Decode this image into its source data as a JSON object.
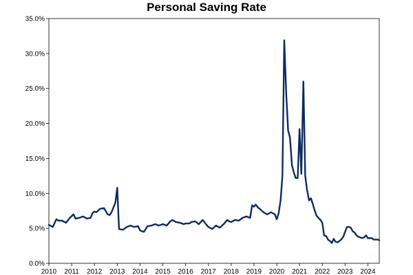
{
  "chart_data": {
    "type": "line",
    "title": "Personal Saving Rate",
    "xlabel": "",
    "ylabel": "",
    "x_ticks": [
      "2010",
      "2011",
      "2012",
      "2013",
      "2014",
      "2015",
      "2016",
      "2017",
      "2018",
      "2019",
      "2020",
      "2021",
      "2022",
      "2023",
      "2024"
    ],
    "y_ticks": [
      "0.0%",
      "5.0%",
      "10.0%",
      "15.0%",
      "20.0%",
      "25.0%",
      "30.0%",
      "35.0%"
    ],
    "xlim": [
      2010.0,
      2024.5
    ],
    "ylim": [
      0,
      35
    ],
    "grid": false,
    "legend": "none",
    "colors": {
      "line": "#0d2b5e",
      "axis": "#000000",
      "border": "#000000"
    },
    "series": [
      {
        "x": [
          2010.0,
          2010.17,
          2010.33,
          2010.42,
          2010.58,
          2010.75,
          2010.92,
          2011.08,
          2011.17,
          2011.33,
          2011.5,
          2011.67,
          2011.83,
          2011.92,
          2012.0,
          2012.08,
          2012.25,
          2012.42,
          2012.58,
          2012.67,
          2012.75,
          2012.92,
          2013.0,
          2013.08,
          2013.25,
          2013.42,
          2013.58,
          2013.75,
          2013.92,
          2014.0,
          2014.17,
          2014.33,
          2014.5,
          2014.67,
          2014.83,
          2015.0,
          2015.17,
          2015.33,
          2015.42,
          2015.58,
          2015.75,
          2015.92,
          2016.0,
          2016.17,
          2016.25,
          2016.42,
          2016.58,
          2016.75,
          2016.92,
          2017.0,
          2017.17,
          2017.33,
          2017.5,
          2017.67,
          2017.83,
          2017.92,
          2018.0,
          2018.17,
          2018.33,
          2018.5,
          2018.67,
          2018.83,
          2018.92,
          2019.0,
          2019.08,
          2019.17,
          2019.25,
          2019.42,
          2019.58,
          2019.75,
          2019.92,
          2020.0,
          2020.08,
          2020.17,
          2020.25,
          2020.33,
          2020.42,
          2020.5,
          2020.58,
          2020.67,
          2020.75,
          2020.83,
          2020.92,
          2021.0,
          2021.08,
          2021.17,
          2021.25,
          2021.33,
          2021.42,
          2021.5,
          2021.58,
          2021.67,
          2021.75,
          2021.83,
          2021.92,
          2022.0,
          2022.08,
          2022.17,
          2022.25,
          2022.33,
          2022.42,
          2022.5,
          2022.58,
          2022.67,
          2022.75,
          2022.83,
          2022.92,
          2023.0,
          2023.08,
          2023.17,
          2023.25,
          2023.33,
          2023.42,
          2023.5,
          2023.58,
          2023.67,
          2023.75,
          2023.83,
          2023.92,
          2024.0,
          2024.08,
          2024.17,
          2024.25,
          2024.33,
          2024.42,
          2024.5
        ],
        "values": [
          5.5,
          5.2,
          6.3,
          6.1,
          6.1,
          5.8,
          6.5,
          7.0,
          6.4,
          6.5,
          6.7,
          6.4,
          6.5,
          7.2,
          7.4,
          7.3,
          7.8,
          7.9,
          7.0,
          6.9,
          7.3,
          8.7,
          10.8,
          4.9,
          4.8,
          5.2,
          5.4,
          5.2,
          5.3,
          4.7,
          4.5,
          5.3,
          5.4,
          5.6,
          5.4,
          5.6,
          5.4,
          6.0,
          6.2,
          5.9,
          5.8,
          5.6,
          5.7,
          5.7,
          5.9,
          6.0,
          5.6,
          6.2,
          5.5,
          5.2,
          4.9,
          5.4,
          5.1,
          5.6,
          6.2,
          6.0,
          5.9,
          6.2,
          6.1,
          6.5,
          6.7,
          6.5,
          8.3,
          8.1,
          8.4,
          8.0,
          7.8,
          7.3,
          7.0,
          7.3,
          7.0,
          6.3,
          7.1,
          9.0,
          12.5,
          31.9,
          24.0,
          19.0,
          18.0,
          14.0,
          13.0,
          12.2,
          12.2,
          19.2,
          12.8,
          26.0,
          12.5,
          10.5,
          9.0,
          9.3,
          8.5,
          7.5,
          6.8,
          6.5,
          6.2,
          5.8,
          4.0,
          3.9,
          3.4,
          3.2,
          2.9,
          3.5,
          3.1,
          3.0,
          3.2,
          3.4,
          3.8,
          4.5,
          5.2,
          5.2,
          5.1,
          4.6,
          4.4,
          4.0,
          3.8,
          3.7,
          3.6,
          3.7,
          4.0,
          3.6,
          3.6,
          3.6,
          3.4,
          3.4,
          3.4,
          3.3
        ]
      }
    ]
  }
}
